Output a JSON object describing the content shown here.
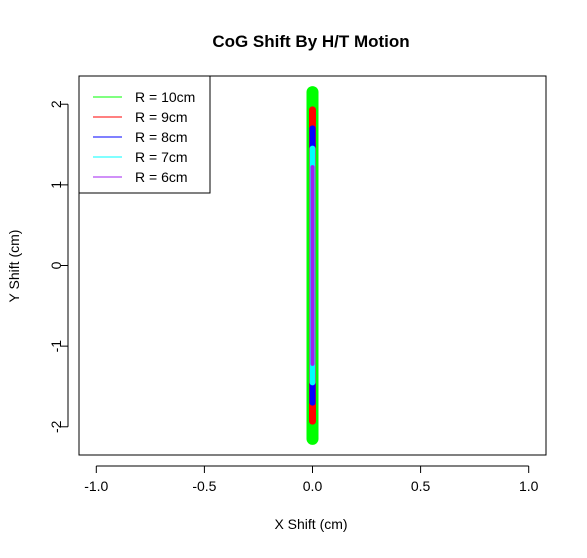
{
  "chart_data": {
    "type": "line",
    "title": "CoG Shift By H/T Motion",
    "xlabel": "X Shift (cm)",
    "ylabel": "Y Shift (cm)",
    "xlim": [
      -1.08,
      1.08
    ],
    "ylim": [
      -2.35,
      2.35
    ],
    "x_ticks": [
      -1.0,
      -0.5,
      0.0,
      0.5,
      1.0
    ],
    "x_tick_labels": [
      "-1.0",
      "-0.5",
      "0.0",
      "0.5",
      "1.0"
    ],
    "y_ticks": [
      -2,
      -1,
      0,
      1,
      2
    ],
    "y_tick_labels": [
      "-2",
      "-1",
      "0",
      "1",
      "2"
    ],
    "grid": false,
    "legend_position": "top-left",
    "series": [
      {
        "name": "R = 10cm",
        "color": "#00ff00",
        "x": [
          0,
          0
        ],
        "y": [
          -2.15,
          2.15
        ]
      },
      {
        "name": "R = 9cm",
        "color": "#ff0000",
        "x": [
          0,
          0
        ],
        "y": [
          -1.93,
          1.93
        ]
      },
      {
        "name": "R = 8cm",
        "color": "#0000ff",
        "x": [
          0,
          0
        ],
        "y": [
          -1.7,
          1.7
        ]
      },
      {
        "name": "R = 7cm",
        "color": "#00ffff",
        "x": [
          0,
          0
        ],
        "y": [
          -1.45,
          1.45
        ]
      },
      {
        "name": "R = 6cm",
        "color": "#a020f0",
        "x": [
          0,
          0
        ],
        "y": [
          -1.22,
          1.22
        ]
      }
    ]
  }
}
